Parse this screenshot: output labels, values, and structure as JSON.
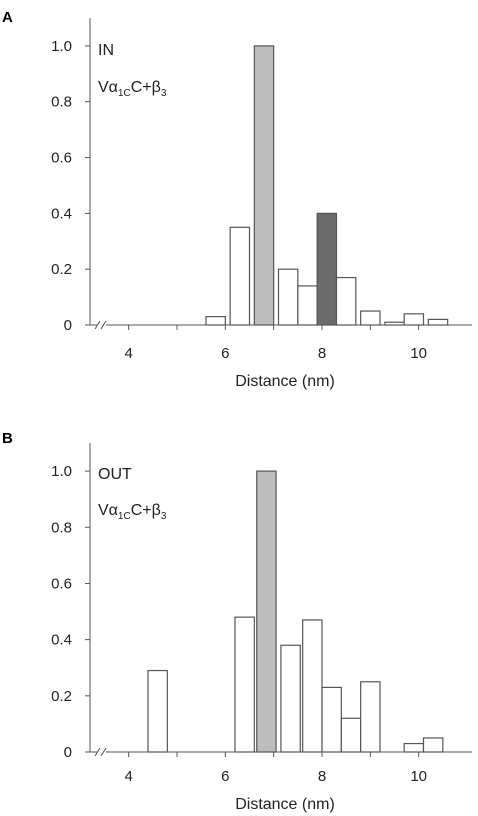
{
  "figure": {
    "panel_a": "A",
    "panel_b": "B"
  },
  "chart_data": [
    {
      "type": "bar",
      "panel": "A",
      "xlabel": "Distance (nm)",
      "ylabel": "",
      "xlim": [
        3.2,
        11.0
      ],
      "ylim": [
        0,
        1.1
      ],
      "xticks": [
        4,
        6,
        8,
        10
      ],
      "yticks": [
        0,
        0.2,
        0.4,
        0.6,
        0.8,
        1.0
      ],
      "ytick_labels": [
        "0",
        "0.2",
        "0.4",
        "0.6",
        "0.8",
        "1.0"
      ],
      "axis_break": true,
      "grid": false,
      "annotation": {
        "line1": "IN",
        "main": "Vα",
        "sub": "1C",
        "rest": "C+β",
        "sub2": "3"
      },
      "bar_width": 0.4,
      "bars": [
        {
          "x": 5.8,
          "value": 0.03,
          "fill": "#ffffff"
        },
        {
          "x": 6.3,
          "value": 0.35,
          "fill": "#ffffff"
        },
        {
          "x": 6.8,
          "value": 1.0,
          "fill": "#bdbdbd"
        },
        {
          "x": 7.3,
          "value": 0.2,
          "fill": "#ffffff"
        },
        {
          "x": 7.7,
          "value": 0.14,
          "fill": "#ffffff"
        },
        {
          "x": 8.1,
          "value": 0.4,
          "fill": "#6b6b6b"
        },
        {
          "x": 8.5,
          "value": 0.17,
          "fill": "#ffffff"
        },
        {
          "x": 9.0,
          "value": 0.05,
          "fill": "#ffffff"
        },
        {
          "x": 9.5,
          "value": 0.01,
          "fill": "#ffffff"
        },
        {
          "x": 9.9,
          "value": 0.04,
          "fill": "#ffffff"
        },
        {
          "x": 10.4,
          "value": 0.02,
          "fill": "#ffffff"
        }
      ]
    },
    {
      "type": "bar",
      "panel": "B",
      "xlabel": "Distance (nm)",
      "ylabel": "",
      "xlim": [
        3.2,
        11.0
      ],
      "ylim": [
        0,
        1.1
      ],
      "xticks": [
        4,
        6,
        8,
        10
      ],
      "yticks": [
        0,
        0.2,
        0.4,
        0.6,
        0.8,
        1.0
      ],
      "ytick_labels": [
        "0",
        "0.2",
        "0.4",
        "0.6",
        "0.8",
        "1.0"
      ],
      "axis_break": true,
      "grid": false,
      "annotation": {
        "line1": "OUT",
        "main": "Vα",
        "sub": "1C",
        "rest": "C+β",
        "sub2": "3"
      },
      "bar_width": 0.4,
      "bars": [
        {
          "x": 4.6,
          "value": 0.29,
          "fill": "#ffffff"
        },
        {
          "x": 6.4,
          "value": 0.48,
          "fill": "#ffffff"
        },
        {
          "x": 6.85,
          "value": 1.0,
          "fill": "#bdbdbd"
        },
        {
          "x": 7.35,
          "value": 0.38,
          "fill": "#ffffff"
        },
        {
          "x": 7.8,
          "value": 0.47,
          "fill": "#ffffff"
        },
        {
          "x": 8.2,
          "value": 0.23,
          "fill": "#ffffff"
        },
        {
          "x": 8.6,
          "value": 0.12,
          "fill": "#ffffff"
        },
        {
          "x": 9.0,
          "value": 0.25,
          "fill": "#ffffff"
        },
        {
          "x": 9.9,
          "value": 0.03,
          "fill": "#ffffff"
        },
        {
          "x": 10.3,
          "value": 0.05,
          "fill": "#ffffff"
        }
      ]
    }
  ]
}
